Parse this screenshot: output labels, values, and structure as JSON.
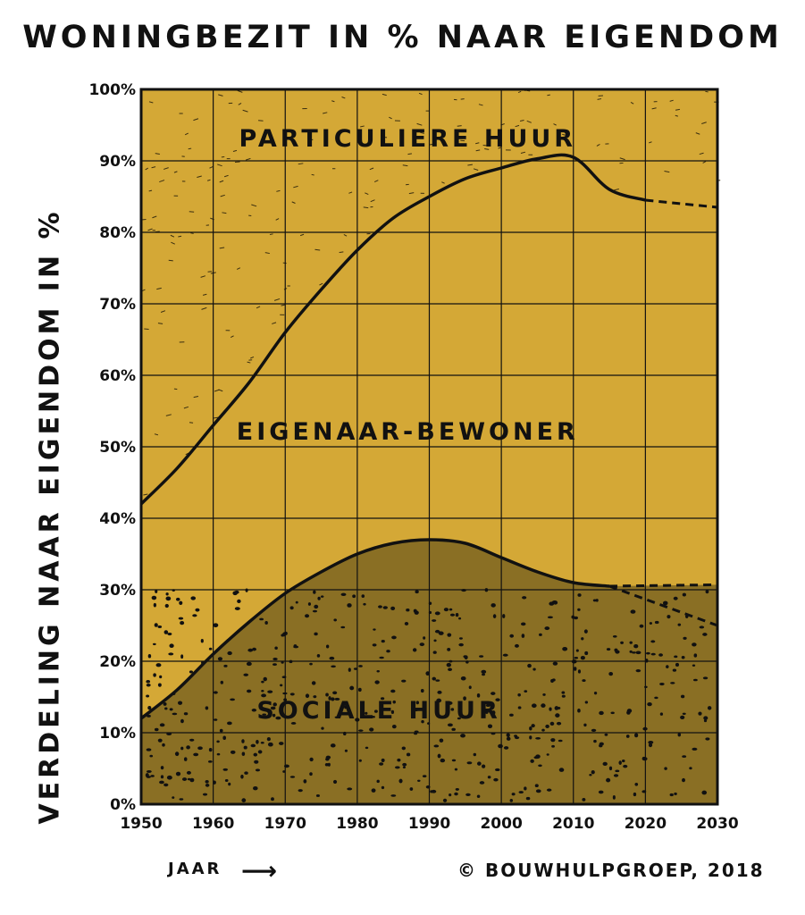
{
  "chart_data": {
    "type": "area",
    "title": "WONINGBEZIT IN % NAAR EIGENDOM",
    "ylabel": "VERDELING NAAR EIGENDOM IN %",
    "xlabel": "JAAR",
    "credit": "© BOUWHULPGROEP, 2018",
    "xlim": [
      1950,
      2030
    ],
    "ylim": [
      0,
      100
    ],
    "x_ticks": [
      "1950",
      "1960",
      "1970",
      "1980",
      "1990",
      "2000",
      "2010",
      "2020",
      "2030"
    ],
    "y_ticks": [
      "0%",
      "10%",
      "20%",
      "30%",
      "40%",
      "50%",
      "60%",
      "70%",
      "80%",
      "90%",
      "100%"
    ],
    "grid": true,
    "region_labels": [
      "PARTICULIERE HUUR",
      "EIGENAAR-BEWONER",
      "SOCIALE HUUR"
    ],
    "series": [
      {
        "name": "SOCIALE HUUR",
        "color": "#8a6f24",
        "x": [
          1950,
          1955,
          1960,
          1965,
          1970,
          1975,
          1980,
          1985,
          1990,
          1995,
          2000,
          2005,
          2010,
          2015
        ],
        "values": [
          12,
          16,
          21,
          25.5,
          29.5,
          32.5,
          35,
          36.5,
          37,
          36.5,
          34.5,
          32.5,
          31,
          30.5
        ]
      },
      {
        "name": "EIGENAAR-BEWONER",
        "color": "#d4a836",
        "x": [
          1950,
          1955,
          1960,
          1965,
          1970,
          1975,
          1980,
          1985,
          1990,
          1995,
          2000,
          2005,
          2010,
          2015,
          2020
        ],
        "values": [
          42,
          47,
          53,
          59,
          66,
          72,
          77.5,
          82,
          85,
          87.5,
          89,
          90.3,
          90.5,
          86,
          84.5
        ]
      }
    ],
    "projections": [
      {
        "x": [
          2015,
          2030
        ],
        "values": [
          30.5,
          30.7
        ]
      },
      {
        "x": [
          2015,
          2030
        ],
        "values": [
          30.5,
          25
        ]
      },
      {
        "x": [
          2020,
          2030
        ],
        "values": [
          84.5,
          83.5
        ]
      }
    ],
    "colors": {
      "top": "#d4a836",
      "mid": "#d4a836",
      "bottom": "#8a6f24",
      "grid": "#111111"
    }
  }
}
